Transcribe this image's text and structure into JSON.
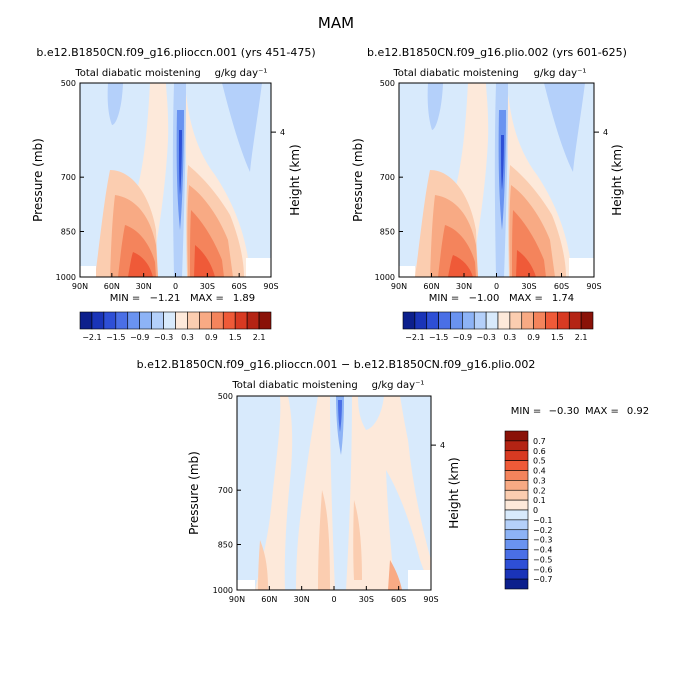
{
  "page_title": "MAM",
  "colors": {
    "neg_1": "#d8eafc",
    "neg_2": "#b4d0fa",
    "neg_3": "#8db3f6",
    "neg_4": "#6a93f0",
    "neg_5": "#4a6fe6",
    "neg_6": "#2e4fd6",
    "neg_7": "#1a34b8",
    "neg_8": "#0c1f8c",
    "pos_1": "#fde9da",
    "pos_2": "#fbcdb0",
    "pos_3": "#f8aa84",
    "pos_4": "#f4845c",
    "pos_5": "#ef5a38",
    "pos_6": "#d83a22",
    "pos_7": "#b42414",
    "pos_8": "#8a1208"
  },
  "chart_data": [
    {
      "type": "heatmap",
      "title": "b.e12.B1850CN.f09_g16.plioccn.001 (yrs 451-475)",
      "subtitle": "Total diabatic moistening",
      "units": "g/kg day⁻¹",
      "ylabel": "Pressure (mb)",
      "ylabel_right": "Height (km)",
      "x_ticks": [
        "90N",
        "60N",
        "30N",
        "0",
        "30S",
        "60S",
        "90S"
      ],
      "x_range": [
        90,
        -90
      ],
      "y_ticks": [
        "500",
        "700",
        "850",
        "1000"
      ],
      "y_range": [
        500,
        1000
      ],
      "y_ticks_right": [
        "4"
      ],
      "min_label": "MIN =",
      "min_value": "−1.21",
      "max_label": "MAX =",
      "max_value": "1.89",
      "colorbar": {
        "orientation": "horizontal",
        "levels": [
          "−2.1",
          "−1.5",
          "−0.9",
          "−0.3",
          "0.3",
          "0.9",
          "1.5",
          "2.1"
        ],
        "num_bins": 16
      }
    },
    {
      "type": "heatmap",
      "title": "b.e12.B1850CN.f09_g16.plio.002 (yrs 601-625)",
      "subtitle": "Total diabatic moistening",
      "units": "g/kg day⁻¹",
      "ylabel": "Pressure (mb)",
      "ylabel_right": "Height (km)",
      "x_ticks": [
        "90N",
        "60N",
        "30N",
        "0",
        "30S",
        "60S",
        "90S"
      ],
      "x_range": [
        90,
        -90
      ],
      "y_ticks": [
        "500",
        "700",
        "850",
        "1000"
      ],
      "y_range": [
        500,
        1000
      ],
      "y_ticks_right": [
        "4"
      ],
      "min_label": "MIN =",
      "min_value": "−1.00",
      "max_label": "MAX =",
      "max_value": "1.74",
      "colorbar": {
        "orientation": "horizontal",
        "levels": [
          "−2.1",
          "−1.5",
          "−0.9",
          "−0.3",
          "0.3",
          "0.9",
          "1.5",
          "2.1"
        ],
        "num_bins": 16
      }
    },
    {
      "type": "heatmap",
      "title": "b.e12.B1850CN.f09_g16.plioccn.001 − b.e12.B1850CN.f09_g16.plio.002",
      "subtitle": "Total diabatic moistening",
      "units": "g/kg day⁻¹",
      "ylabel": "Pressure (mb)",
      "ylabel_right": "Height (km)",
      "x_ticks": [
        "90N",
        "60N",
        "30N",
        "0",
        "30S",
        "60S",
        "90S"
      ],
      "x_range": [
        90,
        -90
      ],
      "y_ticks": [
        "500",
        "700",
        "850",
        "1000"
      ],
      "y_range": [
        500,
        1000
      ],
      "y_ticks_right": [
        "4"
      ],
      "min_label": "MIN =",
      "min_value": "−0.30",
      "max_label": "MAX =",
      "max_value": "0.92",
      "colorbar": {
        "orientation": "vertical",
        "levels": [
          "0.7",
          "0.6",
          "0.5",
          "0.4",
          "0.3",
          "0.2",
          "0.1",
          "0",
          "−0.1",
          "−0.2",
          "−0.3",
          "−0.4",
          "−0.5",
          "−0.6",
          "−0.7"
        ],
        "num_bins": 16
      }
    }
  ]
}
